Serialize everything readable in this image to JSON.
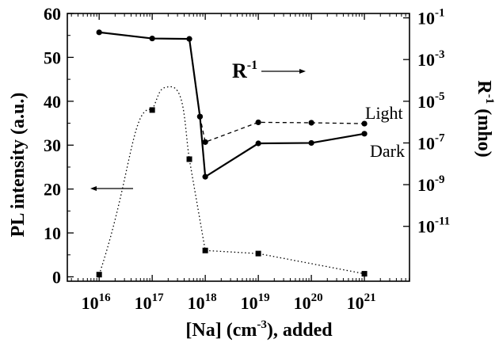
{
  "chart_data": {
    "type": "line",
    "xlabel": {
      "main": "[Na]  (cm",
      "sup": "-3",
      "tail": "), added"
    },
    "ylabel_left": "PL intensity (a.u.)",
    "ylabel_right": {
      "main": "R",
      "sup": "-1",
      "tail": " (mho)"
    },
    "x_scale": "log",
    "xlim_exp": [
      15.4,
      21.85
    ],
    "x_ticks": [
      {
        "base": "10",
        "exp": "16",
        "value_exp": 16
      },
      {
        "base": "10",
        "exp": "17",
        "value_exp": 17
      },
      {
        "base": "10",
        "exp": "18",
        "value_exp": 18
      },
      {
        "base": "10",
        "exp": "19",
        "value_exp": 19
      },
      {
        "base": "10",
        "exp": "20",
        "value_exp": 20
      },
      {
        "base": "10",
        "exp": "21",
        "value_exp": 21
      }
    ],
    "ylim_left": [
      -1,
      60
    ],
    "y_ticks_left": [
      {
        "label": "0",
        "value": 0
      },
      {
        "label": "10",
        "value": 10
      },
      {
        "label": "20",
        "value": 20
      },
      {
        "label": "30",
        "value": 30
      },
      {
        "label": "40",
        "value": 40
      },
      {
        "label": "50",
        "value": 50
      },
      {
        "label": "60",
        "value": 60
      }
    ],
    "right_scale": "log",
    "y_ticks_right": [
      {
        "base": "10",
        "exp": "-1",
        "left_equiv": 59
      },
      {
        "base": "10",
        "exp": "-3",
        "left_equiv": 49.5
      },
      {
        "base": "10",
        "exp": "-5",
        "left_equiv": 40
      },
      {
        "base": "10",
        "exp": "-7",
        "left_equiv": 30.5
      },
      {
        "base": "10",
        "exp": "-9",
        "left_equiv": 21
      },
      {
        "base": "10",
        "exp": "-11",
        "left_equiv": 11.5
      }
    ],
    "series": [
      {
        "name": "PL",
        "axis": "left",
        "marker": "square",
        "style": "dotted",
        "points": [
          {
            "x_exp": 16.0,
            "y": 0.5
          },
          {
            "x_exp": 17.0,
            "y": 38.0
          },
          {
            "x_exp": 17.7,
            "y": 26.8
          },
          {
            "x_exp": 18.0,
            "y": 6.0
          },
          {
            "x_exp": 19.0,
            "y": 5.3
          },
          {
            "x_exp": 21.0,
            "y": 0.7
          }
        ],
        "curve_peak": {
          "x_exp": 17.35,
          "y": 43.3
        }
      },
      {
        "name": "Light",
        "axis": "right",
        "marker": "circle",
        "style": "dashed",
        "points": [
          {
            "x_exp": 17.9,
            "y": 36.5
          },
          {
            "x_exp": 18.0,
            "y": 30.7
          },
          {
            "x_exp": 19.0,
            "y": 35.2
          },
          {
            "x_exp": 20.0,
            "y": 35.1
          },
          {
            "x_exp": 21.0,
            "y": 34.9
          }
        ]
      },
      {
        "name": "Dark",
        "axis": "right",
        "marker": "circle",
        "style": "solid",
        "points": [
          {
            "x_exp": 16.0,
            "y": 55.7
          },
          {
            "x_exp": 17.0,
            "y": 54.3
          },
          {
            "x_exp": 17.7,
            "y": 54.2
          },
          {
            "x_exp": 17.9,
            "y": 36.5
          },
          {
            "x_exp": 18.0,
            "y": 22.8
          },
          {
            "x_exp": 19.0,
            "y": 30.4
          },
          {
            "x_exp": 20.0,
            "y": 30.5
          },
          {
            "x_exp": 21.0,
            "y": 32.6
          }
        ]
      }
    ],
    "annotations": {
      "r_label": {
        "main": "R",
        "sup": "-1"
      },
      "light_label": "Light",
      "dark_label": "Dark"
    },
    "grid": false
  }
}
